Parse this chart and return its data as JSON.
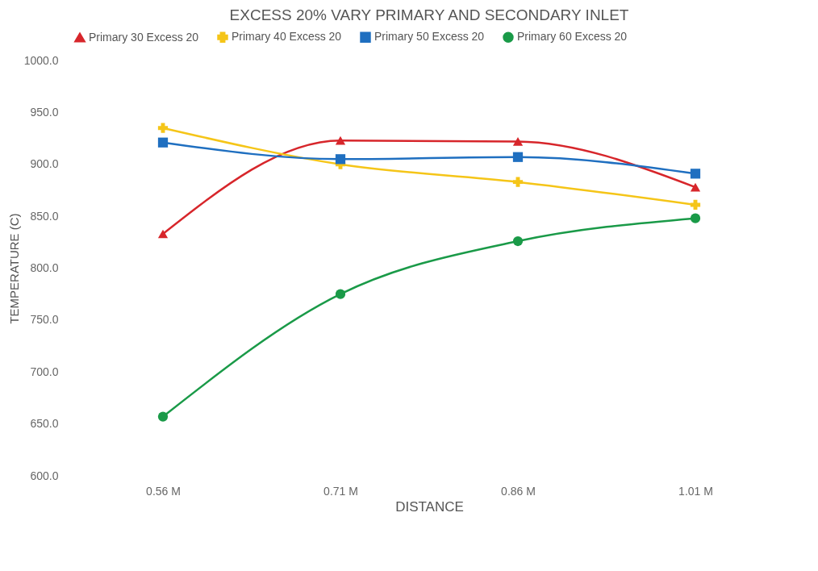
{
  "chart_data": {
    "type": "line",
    "title": "EXCESS 20% VARY PRIMARY AND SECONDARY INLET",
    "xlabel": "DISTANCE",
    "ylabel": "TEMPERATURE (C)",
    "categories": [
      "0.56 M",
      "0.71 M",
      "0.86 M",
      "1.01 M"
    ],
    "series": [
      {
        "name": "Primary 30 Excess 20",
        "color": "#d7262b",
        "marker": "triangle",
        "values": [
          833,
          923,
          922,
          878
        ]
      },
      {
        "name": "Primary 40 Excess 20",
        "color": "#f5c518",
        "marker": "cross",
        "values": [
          935,
          900,
          883,
          861
        ]
      },
      {
        "name": "Primary 50 Excess 20",
        "color": "#1f6fc0",
        "marker": "square",
        "values": [
          921,
          905,
          907,
          891
        ]
      },
      {
        "name": "Primary 60 Excess 20",
        "color": "#1a9a48",
        "marker": "circle",
        "values": [
          657,
          775,
          826,
          848
        ]
      }
    ],
    "ylim": [
      600,
      1000
    ],
    "yticks": [
      {
        "value": 600,
        "label": "600.0"
      },
      {
        "value": 650,
        "label": "650.0"
      },
      {
        "value": 700,
        "label": "700.0"
      },
      {
        "value": 750,
        "label": "750.0"
      },
      {
        "value": 800,
        "label": "800.0"
      },
      {
        "value": 850,
        "label": "850.0"
      },
      {
        "value": 900,
        "label": "900.0"
      },
      {
        "value": 950,
        "label": "950.0"
      },
      {
        "value": 1000,
        "label": "1000.0"
      }
    ],
    "grid": false,
    "legend": "top",
    "line_style": "solid"
  }
}
